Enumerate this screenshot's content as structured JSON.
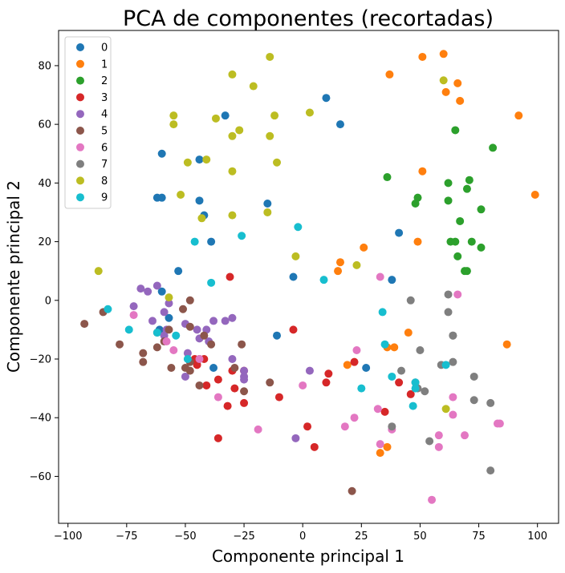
{
  "chart_data": {
    "type": "scatter",
    "title": "PCA de componentes (recortadas)",
    "xlabel": "Componente principal 1",
    "ylabel": "Componente principal 2",
    "xlim": [
      -104,
      109
    ],
    "ylim": [
      -76,
      92
    ],
    "xticks": [
      -100,
      -75,
      -50,
      -25,
      0,
      25,
      50,
      75,
      100
    ],
    "yticks": [
      -60,
      -40,
      -20,
      0,
      20,
      40,
      60,
      80
    ],
    "grid": false,
    "legend_position": "top-left",
    "series": [
      {
        "name": "0",
        "color": "#1f77b4",
        "points": [
          [
            10,
            69
          ],
          [
            16,
            60
          ],
          [
            -33,
            63
          ],
          [
            -60,
            50
          ],
          [
            -44,
            48
          ],
          [
            -62,
            35
          ],
          [
            -60,
            35
          ],
          [
            -44,
            34
          ],
          [
            -15,
            33
          ],
          [
            -42,
            29
          ],
          [
            -39,
            20
          ],
          [
            41,
            23
          ],
          [
            -53,
            10
          ],
          [
            -4,
            8
          ],
          [
            38,
            7
          ],
          [
            -57,
            -6
          ],
          [
            -61,
            -10
          ],
          [
            -38,
            -23
          ],
          [
            -11,
            -12
          ],
          [
            27,
            -23
          ],
          [
            -60,
            3
          ]
        ]
      },
      {
        "name": "1",
        "color": "#ff7f0e",
        "points": [
          [
            60,
            84
          ],
          [
            51,
            83
          ],
          [
            37,
            77
          ],
          [
            66,
            74
          ],
          [
            61,
            71
          ],
          [
            67,
            68
          ],
          [
            92,
            63
          ],
          [
            51,
            44
          ],
          [
            99,
            36
          ],
          [
            26,
            18
          ],
          [
            49,
            20
          ],
          [
            16,
            13
          ],
          [
            15,
            10
          ],
          [
            45,
            -11
          ],
          [
            36,
            -16
          ],
          [
            39,
            -16
          ],
          [
            87,
            -15
          ],
          [
            19,
            -22
          ],
          [
            33,
            -52
          ],
          [
            36,
            -50
          ]
        ]
      },
      {
        "name": "2",
        "color": "#2ca02c",
        "points": [
          [
            65,
            58
          ],
          [
            81,
            52
          ],
          [
            36,
            42
          ],
          [
            62,
            40
          ],
          [
            70,
            38
          ],
          [
            71,
            41
          ],
          [
            49,
            35
          ],
          [
            48,
            33
          ],
          [
            62,
            34
          ],
          [
            67,
            27
          ],
          [
            76,
            31
          ],
          [
            63,
            20
          ],
          [
            65,
            20
          ],
          [
            72,
            20
          ],
          [
            76,
            18
          ],
          [
            66,
            15
          ],
          [
            69,
            10
          ],
          [
            70,
            10
          ]
        ]
      },
      {
        "name": "3",
        "color": "#d62728",
        "points": [
          [
            -31,
            8
          ],
          [
            -4,
            -10
          ],
          [
            -46,
            -20
          ],
          [
            -42,
            -20
          ],
          [
            -45,
            -22
          ],
          [
            -36,
            -27
          ],
          [
            -41,
            -29
          ],
          [
            -30,
            -24
          ],
          [
            -25,
            -24
          ],
          [
            -29,
            -30
          ],
          [
            -10,
            -33
          ],
          [
            -32,
            -36
          ],
          [
            -25,
            -35
          ],
          [
            22,
            -21
          ],
          [
            11,
            -25
          ],
          [
            10,
            -28
          ],
          [
            -36,
            -47
          ],
          [
            2,
            -43
          ],
          [
            5,
            -50
          ],
          [
            35,
            -38
          ],
          [
            41,
            -28
          ],
          [
            46,
            -32
          ]
        ]
      },
      {
        "name": "4",
        "color": "#9467bd",
        "points": [
          [
            -62,
            5
          ],
          [
            -69,
            4
          ],
          [
            -66,
            3
          ],
          [
            -57,
            -1
          ],
          [
            -72,
            -2
          ],
          [
            -64,
            -7
          ],
          [
            -59,
            -4
          ],
          [
            -50,
            -8
          ],
          [
            -45,
            -10
          ],
          [
            -38,
            -7
          ],
          [
            -33,
            -7
          ],
          [
            -30,
            -6
          ],
          [
            -41,
            -10
          ],
          [
            -44,
            -13
          ],
          [
            -40,
            -14
          ],
          [
            -49,
            -18
          ],
          [
            -30,
            -20
          ],
          [
            -25,
            -24
          ],
          [
            -25,
            -26
          ],
          [
            -50,
            -26
          ],
          [
            -25,
            -27
          ],
          [
            3,
            -24
          ],
          [
            -3,
            -47
          ],
          [
            -58,
            -10
          ],
          [
            -59,
            -12
          ]
        ]
      },
      {
        "name": "5",
        "color": "#8c564b",
        "points": [
          [
            -48,
            0
          ],
          [
            -51,
            -3
          ],
          [
            -57,
            -10
          ],
          [
            -62,
            -11
          ],
          [
            -48,
            -9
          ],
          [
            -42,
            -12
          ],
          [
            -39,
            -15
          ],
          [
            -26,
            -15
          ],
          [
            -93,
            -8
          ],
          [
            -85,
            -4
          ],
          [
            -78,
            -15
          ],
          [
            -62,
            -16
          ],
          [
            -68,
            -18
          ],
          [
            -68,
            -21
          ],
          [
            -56,
            -23
          ],
          [
            -50,
            -23
          ],
          [
            -48,
            -24
          ],
          [
            -44,
            -20
          ],
          [
            -29,
            -23
          ],
          [
            -25,
            -31
          ],
          [
            -14,
            -28
          ],
          [
            -44,
            -29
          ],
          [
            -48,
            -21
          ],
          [
            21,
            -65
          ],
          [
            -59,
            -14
          ]
        ]
      },
      {
        "name": "6",
        "color": "#e377c2",
        "points": [
          [
            33,
            8
          ],
          [
            66,
            2
          ],
          [
            -72,
            -5
          ],
          [
            -58,
            -14
          ],
          [
            -55,
            -17
          ],
          [
            -44,
            -20
          ],
          [
            23,
            -17
          ],
          [
            -36,
            -33
          ],
          [
            -19,
            -44
          ],
          [
            0,
            -29
          ],
          [
            18,
            -43
          ],
          [
            22,
            -40
          ],
          [
            32,
            -37
          ],
          [
            38,
            -44
          ],
          [
            33,
            -49
          ],
          [
            64,
            -33
          ],
          [
            64,
            -39
          ],
          [
            58,
            -46
          ],
          [
            58,
            -50
          ],
          [
            69,
            -46
          ],
          [
            83,
            -42
          ],
          [
            84,
            -42
          ],
          [
            55,
            -68
          ]
        ]
      },
      {
        "name": "7",
        "color": "#7f7f7f",
        "points": [
          [
            46,
            0
          ],
          [
            62,
            2
          ],
          [
            62,
            -4
          ],
          [
            64,
            -12
          ],
          [
            64,
            -12
          ],
          [
            50,
            -17
          ],
          [
            64,
            -21
          ],
          [
            59,
            -22
          ],
          [
            73,
            -26
          ],
          [
            42,
            -24
          ],
          [
            48,
            -28
          ],
          [
            49,
            -30
          ],
          [
            52,
            -31
          ],
          [
            73,
            -34
          ],
          [
            80,
            -35
          ],
          [
            38,
            -43
          ],
          [
            54,
            -48
          ],
          [
            80,
            -58
          ]
        ]
      },
      {
        "name": "8",
        "color": "#bcbd22",
        "points": [
          [
            -14,
            83
          ],
          [
            60,
            75
          ],
          [
            -30,
            77
          ],
          [
            -21,
            73
          ],
          [
            -55,
            63
          ],
          [
            -12,
            63
          ],
          [
            3,
            64
          ],
          [
            -37,
            62
          ],
          [
            -55,
            60
          ],
          [
            -27,
            58
          ],
          [
            -30,
            56
          ],
          [
            -14,
            56
          ],
          [
            -41,
            48
          ],
          [
            -49,
            47
          ],
          [
            -11,
            47
          ],
          [
            -52,
            36
          ],
          [
            -30,
            44
          ],
          [
            -15,
            30
          ],
          [
            -43,
            28
          ],
          [
            -30,
            29
          ],
          [
            -3,
            15
          ],
          [
            23,
            12
          ],
          [
            -87,
            10
          ],
          [
            -57,
            1
          ],
          [
            61,
            -37
          ]
        ]
      },
      {
        "name": "9",
        "color": "#17becf",
        "points": [
          [
            -2,
            25
          ],
          [
            -46,
            20
          ],
          [
            -26,
            22
          ],
          [
            9,
            7
          ],
          [
            -39,
            6
          ],
          [
            -83,
            -3
          ],
          [
            -74,
            -10
          ],
          [
            -54,
            -12
          ],
          [
            -62,
            -11
          ],
          [
            34,
            -4
          ],
          [
            -49,
            -20
          ],
          [
            35,
            -15
          ],
          [
            61,
            -22
          ],
          [
            38,
            -26
          ],
          [
            25,
            -30
          ],
          [
            47,
            -36
          ],
          [
            48,
            -28
          ],
          [
            48,
            -30
          ]
        ]
      }
    ]
  }
}
